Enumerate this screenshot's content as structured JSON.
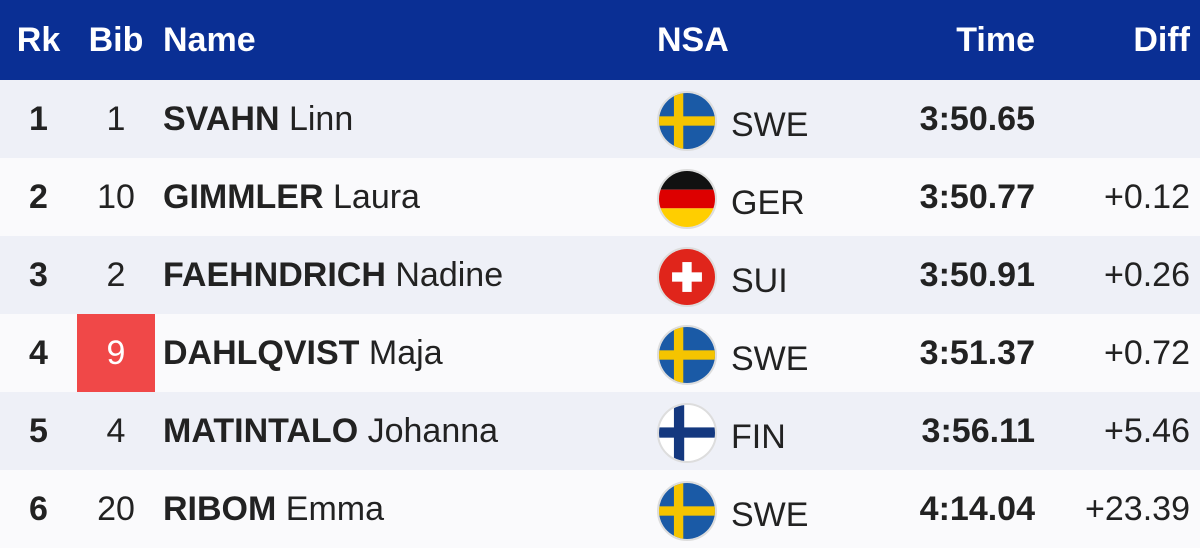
{
  "header": {
    "rk": "Rk",
    "bib": "Bib",
    "name": "Name",
    "nsa": "NSA",
    "time": "Time",
    "diff": "Diff"
  },
  "colors": {
    "header_bg": "#0a2f94",
    "row_odd": "#eef0f7",
    "row_even": "#fafafc",
    "bib_highlight": "#f04848"
  },
  "rows": [
    {
      "rk": "1",
      "bib": "1",
      "last": "SVAHN",
      "first": "Linn",
      "nsa": "SWE",
      "flag": "flag-sweden-icon",
      "time": "3:50.65",
      "diff": ""
    },
    {
      "rk": "2",
      "bib": "10",
      "last": "GIMMLER",
      "first": "Laura",
      "nsa": "GER",
      "flag": "flag-germany-icon",
      "time": "3:50.77",
      "diff": "+0.12"
    },
    {
      "rk": "3",
      "bib": "2",
      "last": "FAEHNDRICH",
      "first": "Nadine",
      "nsa": "SUI",
      "flag": "flag-switzerland-icon",
      "time": "3:50.91",
      "diff": "+0.26"
    },
    {
      "rk": "4",
      "bib": "9",
      "last": "DAHLQVIST",
      "first": "Maja",
      "nsa": "SWE",
      "flag": "flag-sweden-icon",
      "time": "3:51.37",
      "diff": "+0.72",
      "bib_highlight": true
    },
    {
      "rk": "5",
      "bib": "4",
      "last": "MATINTALO",
      "first": "Johanna",
      "nsa": "FIN",
      "flag": "flag-finland-icon",
      "time": "3:56.11",
      "diff": "+5.46"
    },
    {
      "rk": "6",
      "bib": "20",
      "last": "RIBOM",
      "first": "Emma",
      "nsa": "SWE",
      "flag": "flag-sweden-icon",
      "time": "4:14.04",
      "diff": "+23.39"
    }
  ]
}
